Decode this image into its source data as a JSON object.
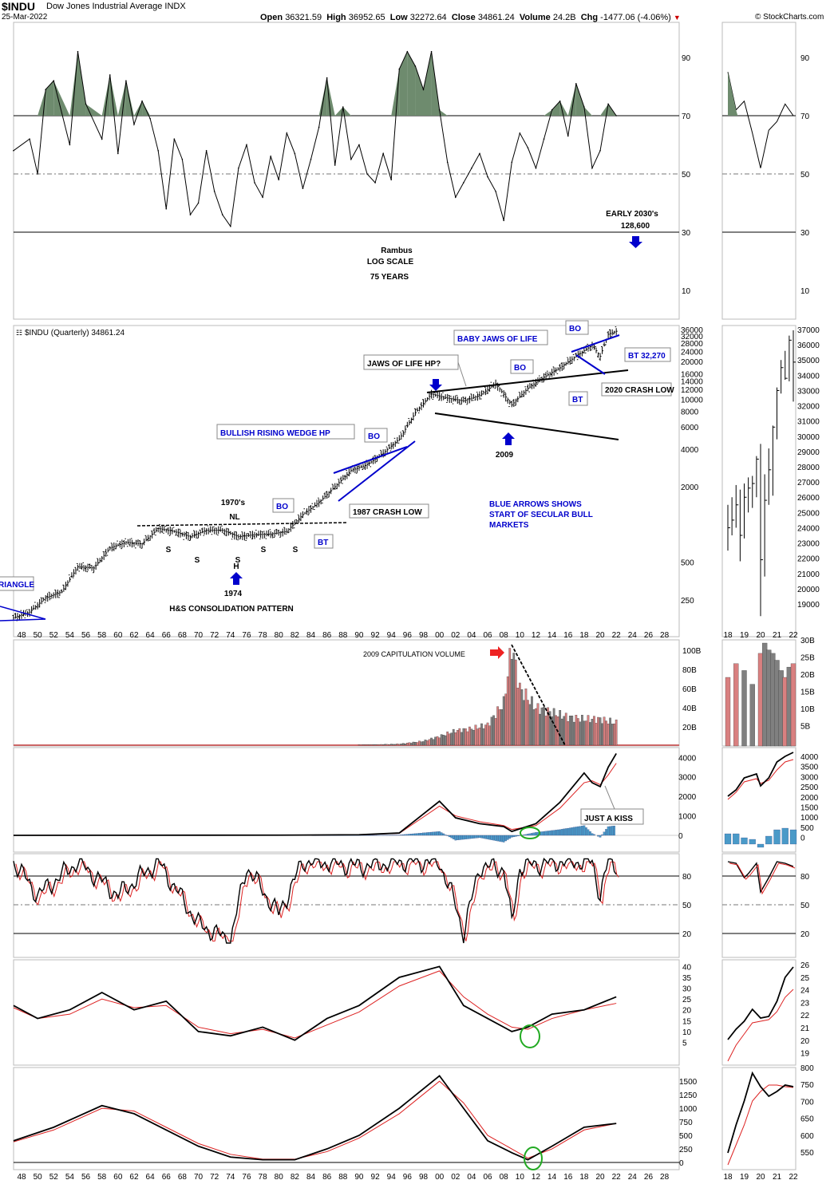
{
  "header": {
    "symbol": "$INDU",
    "name": "Dow Jones Industrial Average",
    "exchange": "INDX",
    "date": "25-Mar-2022",
    "copyright": "© StockCharts.com",
    "open_label": "Open",
    "open": "36321.59",
    "high_label": "High",
    "high": "36952.65",
    "low_label": "Low",
    "low": "32272.64",
    "close_label": "Close",
    "close": "34861.24",
    "volume_label": "Volume",
    "volume": "24.2B",
    "chg_label": "Chg",
    "chg": "-1477.06 (-4.06%)"
  },
  "colors": {
    "rsi_fill": "#6e8b6e",
    "price_bars": "#000000",
    "annotation_blue": "#0000cc",
    "volume_up": "#d98080",
    "volume_down": "#808080",
    "histogram": "#4a9ac8",
    "signal": "#dd2222",
    "highlight_circle": "#22aa22",
    "arrow_red": "#ee2222"
  },
  "chart_data": [
    {
      "panel": "RSI",
      "type": "line",
      "yticks": [
        90,
        70,
        50,
        30,
        10
      ],
      "overbought": 70,
      "x": [
        1947,
        1949,
        1950,
        1951,
        1952,
        1954,
        1955,
        1956,
        1958,
        1959,
        1960,
        1961,
        1962,
        1963,
        1964,
        1965,
        1966,
        1967,
        1968,
        1969,
        1970,
        1971,
        1972,
        1973,
        1974,
        1975,
        1976,
        1977,
        1978,
        1979,
        1980,
        1981,
        1982,
        1983,
        1984,
        1985,
        1986,
        1987,
        1988,
        1989,
        1990,
        1991,
        1992,
        1993,
        1994,
        1995,
        1996,
        1997,
        1998,
        1999,
        2000,
        2001,
        2002,
        2003,
        2004,
        2005,
        2006,
        2007,
        2008,
        2009,
        2010,
        2011,
        2012,
        2013,
        2014,
        2015,
        2016,
        2017,
        2018,
        2019,
        2020,
        2021,
        2022
      ],
      "values": [
        58,
        62,
        50,
        79,
        82,
        60,
        92,
        74,
        62,
        84,
        57,
        82,
        67,
        75,
        69,
        58,
        38,
        62,
        55,
        36,
        40,
        58,
        44,
        36,
        32,
        52,
        60,
        47,
        42,
        56,
        48,
        64,
        57,
        45,
        55,
        66,
        83,
        53,
        73,
        55,
        60,
        50,
        47,
        57,
        48,
        86,
        92,
        87,
        79,
        92,
        72,
        54,
        42,
        47,
        52,
        57,
        49,
        44,
        34,
        54,
        64,
        59,
        52,
        62,
        72,
        75,
        63,
        81,
        73,
        52,
        58,
        74,
        70
      ]
    },
    {
      "panel": "Price ($INDU Quarterly)",
      "type": "candlestick",
      "series_label": "$INDU (Quarterly) 34861.24",
      "scale": "log",
      "yticks_left_axis": [
        36000,
        32000,
        28000,
        24000,
        20000,
        16000,
        14000,
        12000,
        10000,
        8000,
        6000,
        4000,
        2000,
        500,
        250
      ],
      "x": [
        1947,
        1949,
        1951,
        1953,
        1955,
        1957,
        1959,
        1961,
        1963,
        1965,
        1967,
        1969,
        1971,
        1973,
        1975,
        1977,
        1979,
        1981,
        1983,
        1985,
        1987,
        1989,
        1991,
        1993,
        1995,
        1997,
        1999,
        2001,
        2003,
        2005,
        2007,
        2009,
        2011,
        2013,
        2015,
        2017,
        2019,
        2020,
        2021,
        2022
      ],
      "close": [
        180,
        200,
        260,
        290,
        460,
        450,
        650,
        720,
        700,
        930,
        880,
        800,
        900,
        900,
        800,
        830,
        840,
        880,
        1200,
        1500,
        2000,
        2700,
        3000,
        3700,
        4800,
        7800,
        11000,
        10200,
        9700,
        10700,
        13300,
        9000,
        12200,
        15000,
        17800,
        22000,
        27000,
        22000,
        33000,
        34861
      ]
    },
    {
      "panel": "Volume",
      "type": "bar",
      "yticks": [
        "100B",
        "80B",
        "60B",
        "40B",
        "20B"
      ],
      "x": [
        1990,
        1995,
        1998,
        2000,
        2002,
        2004,
        2006,
        2008,
        2009,
        2010,
        2012,
        2014,
        2016,
        2018,
        2020,
        2022
      ],
      "values": [
        1,
        2,
        5,
        10,
        16,
        18,
        22,
        45,
        105,
        60,
        40,
        35,
        30,
        28,
        28,
        24
      ]
    },
    {
      "panel": "MACD",
      "type": "line",
      "yticks": [
        4000,
        3000,
        2000,
        1000,
        0
      ],
      "x": [
        1947,
        1960,
        1980,
        1990,
        1995,
        2000,
        2002,
        2005,
        2008,
        2009,
        2012,
        2015,
        2018,
        2019,
        2020,
        2021,
        2022
      ],
      "macd": [
        0,
        5,
        10,
        30,
        120,
        1750,
        900,
        600,
        450,
        200,
        600,
        1700,
        3200,
        2700,
        2500,
        3500,
        4200
      ],
      "signal": [
        0,
        5,
        10,
        25,
        100,
        1500,
        1000,
        700,
        500,
        300,
        500,
        1400,
        2700,
        2800,
        2600,
        3100,
        3700
      ],
      "histogram": [
        0,
        0,
        0,
        5,
        20,
        200,
        -250,
        -120,
        -350,
        -100,
        150,
        300,
        500,
        100,
        -100,
        450,
        500
      ]
    },
    {
      "panel": "Stochastic",
      "type": "line",
      "yticks": [
        80,
        50,
        20
      ],
      "x": [
        1947,
        1950,
        1955,
        1960,
        1965,
        1970,
        1974,
        1976,
        1980,
        1983,
        1985,
        1990,
        1995,
        2000,
        2002,
        2003,
        2005,
        2008,
        2009,
        2010,
        2015,
        2019,
        2020,
        2021,
        2022
      ],
      "values": [
        95,
        60,
        95,
        60,
        95,
        30,
        12,
        90,
        40,
        95,
        95,
        90,
        95,
        95,
        50,
        20,
        90,
        88,
        30,
        90,
        95,
        95,
        60,
        95,
        92
      ]
    },
    {
      "panel": "Indicator 4",
      "type": "line",
      "yticks": [
        40,
        35,
        30,
        25,
        20,
        15,
        10,
        5
      ],
      "x": [
        1947,
        1950,
        1954,
        1958,
        1962,
        1966,
        1970,
        1974,
        1978,
        1982,
        1986,
        1990,
        1995,
        2000,
        2003,
        2006,
        2009,
        2011,
        2014,
        2018,
        2022
      ],
      "values": [
        22,
        16,
        20,
        28,
        20,
        24,
        10,
        8,
        12,
        6,
        16,
        22,
        35,
        40,
        22,
        16,
        10,
        12,
        18,
        20,
        26
      ],
      "signal": [
        21,
        16,
        18,
        25,
        21,
        22,
        12,
        9,
        11,
        7,
        13,
        19,
        31,
        38,
        26,
        18,
        12,
        11,
        16,
        20,
        23
      ]
    },
    {
      "panel": "Indicator 5",
      "type": "line",
      "yticks": [
        1500,
        1250,
        1000,
        750,
        500,
        250,
        0
      ],
      "x": [
        1947,
        1952,
        1958,
        1962,
        1966,
        1970,
        1974,
        1978,
        1982,
        1986,
        1990,
        1995,
        2000,
        2003,
        2006,
        2009,
        2011,
        2014,
        2018,
        2022
      ],
      "values": [
        400,
        650,
        1050,
        900,
        600,
        300,
        100,
        50,
        50,
        250,
        500,
        1000,
        1600,
        1000,
        400,
        180,
        50,
        300,
        650,
        720
      ],
      "signal": [
        380,
        600,
        1000,
        950,
        650,
        350,
        150,
        60,
        60,
        200,
        450,
        900,
        1500,
        1100,
        500,
        250,
        80,
        250,
        600,
        720
      ]
    }
  ],
  "xaxis_labels": [
    "48",
    "50",
    "52",
    "54",
    "56",
    "58",
    "60",
    "62",
    "64",
    "66",
    "68",
    "70",
    "72",
    "74",
    "76",
    "78",
    "80",
    "82",
    "84",
    "86",
    "88",
    "90",
    "92",
    "94",
    "96",
    "98",
    "00",
    "02",
    "04",
    "06",
    "08",
    "10",
    "12",
    "14",
    "16",
    "18",
    "20",
    "22",
    "24",
    "26",
    "28"
  ],
  "side_xaxis_labels": [
    "18",
    "19",
    "20",
    "21",
    "22"
  ],
  "side_price_ticks": [
    "37000",
    "36000",
    "35000",
    "34000",
    "33000",
    "32000",
    "31000",
    "30000",
    "29000",
    "28000",
    "27000",
    "26000",
    "25000",
    "24000",
    "23000",
    "22000",
    "21000",
    "20000",
    "19000"
  ],
  "annotations": {
    "early_2030": "EARLY 2030's",
    "target": "128,600",
    "rambus": "Rambus",
    "log_scale": "LOG SCALE",
    "years": "75 YEARS",
    "baby_jaws": "BABY JAWS OF LIFE",
    "jaws_of_life": "JAWS OF LIFE HP?",
    "bo": "BO",
    "bt": "BT",
    "bt_32270": "BT 32,270",
    "crash_2020": "2020 CRASH LOW",
    "crash_1987": "1987 CRASH LOW",
    "wedge": "BULLISH RISING WEDGE HP",
    "seventies": "1970's",
    "nl": "NL",
    "s": "S",
    "h": "H",
    "y1974": "1974",
    "y2009": "2009",
    "hs_pattern": "H&S CONSOLIDATION PATTERN",
    "triangle": "RIANGLE",
    "blue_arrows_1": "BLUE ARROWS SHOWS",
    "blue_arrows_2": "START OF SECULAR BULL",
    "blue_arrows_3": "MARKETS",
    "capitulation": "2009 CAPITULATION VOLUME",
    "just_a_kiss": "JUST A KISS"
  }
}
